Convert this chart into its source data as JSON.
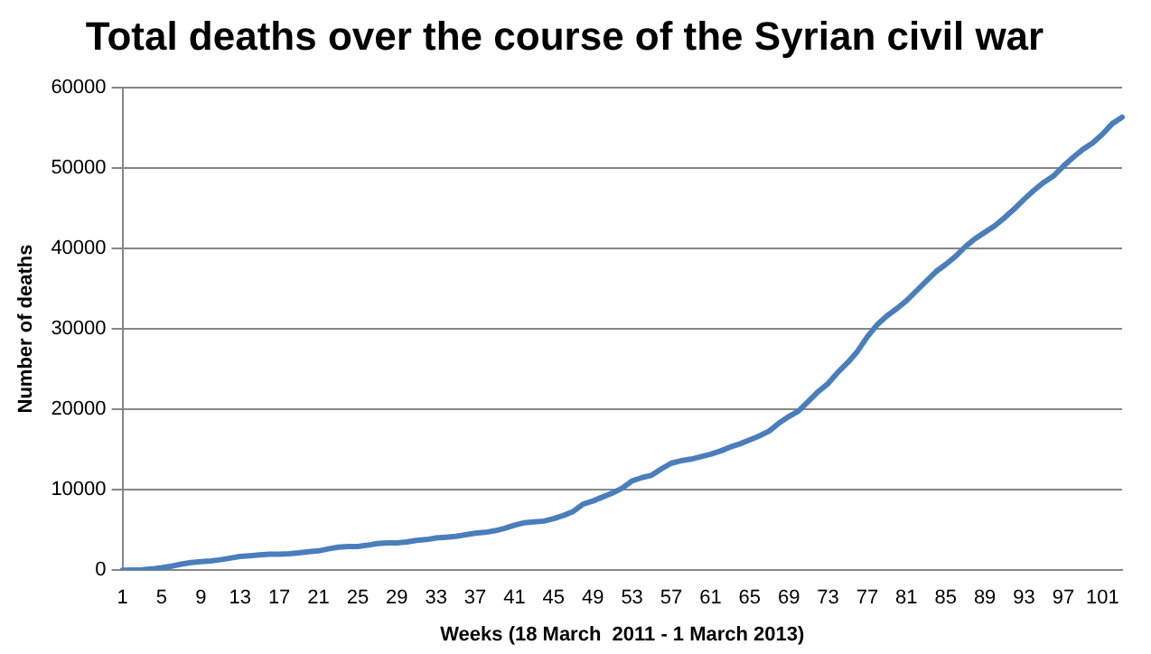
{
  "chart_data": {
    "type": "line",
    "title": "Total deaths over the course of the Syrian civil war",
    "xlabel": "Weeks (18 March  2011 - 1 March 2013)",
    "ylabel": "Number of deaths",
    "categories": [
      "1",
      null,
      null,
      null,
      "5",
      null,
      null,
      null,
      "9",
      null,
      null,
      null,
      "13",
      null,
      null,
      null,
      "17",
      null,
      null,
      null,
      "21",
      null,
      null,
      null,
      "25",
      null,
      null,
      null,
      "29",
      null,
      null,
      null,
      "33",
      null,
      null,
      null,
      "37",
      null,
      null,
      null,
      "41",
      null,
      null,
      null,
      "45",
      null,
      null,
      null,
      "49",
      null,
      null,
      null,
      "53",
      null,
      null,
      null,
      "57",
      null,
      null,
      null,
      "61",
      null,
      null,
      null,
      "65",
      null,
      null,
      null,
      "69",
      null,
      null,
      null,
      "73",
      null,
      null,
      null,
      "77",
      null,
      null,
      null,
      "81",
      null,
      null,
      null,
      "85",
      null,
      null,
      null,
      "89",
      null,
      null,
      null,
      "93",
      null,
      null,
      null,
      "97",
      null,
      null,
      null,
      "101",
      null,
      null
    ],
    "series": [
      {
        "color": "#4a7ebb",
        "values": [
          0,
          20,
          50,
          150,
          300,
          500,
          750,
          950,
          1050,
          1150,
          1300,
          1500,
          1700,
          1800,
          1900,
          2000,
          2000,
          2050,
          2150,
          2300,
          2400,
          2650,
          2850,
          2950,
          2950,
          3100,
          3300,
          3400,
          3400,
          3500,
          3700,
          3800,
          4000,
          4100,
          4200,
          4400,
          4600,
          4700,
          4900,
          5200,
          5600,
          5900,
          6000,
          6100,
          6400,
          6800,
          7300,
          8200,
          8600,
          9100,
          9600,
          10200,
          11100,
          11500,
          11800,
          12600,
          13300,
          13600,
          13800,
          14100,
          14400,
          14800,
          15300,
          15700,
          16200,
          16700,
          17300,
          18300,
          19100,
          19800,
          21000,
          22200,
          23200,
          24600,
          25800,
          27200,
          29000,
          30500,
          31600,
          32500,
          33500,
          34700,
          35900,
          37100,
          38000,
          39000,
          40200,
          41200,
          42000,
          42800,
          43800,
          44900,
          46100,
          47200,
          48200,
          49000,
          50200,
          51300,
          52300,
          53100,
          54200,
          55500,
          56300
        ]
      }
    ],
    "ylim": [
      0,
      60000
    ],
    "yticks": [
      0,
      10000,
      20000,
      30000,
      40000,
      50000,
      60000
    ],
    "grid": "y",
    "legend": false,
    "marker": "none",
    "line_style": "solid"
  }
}
